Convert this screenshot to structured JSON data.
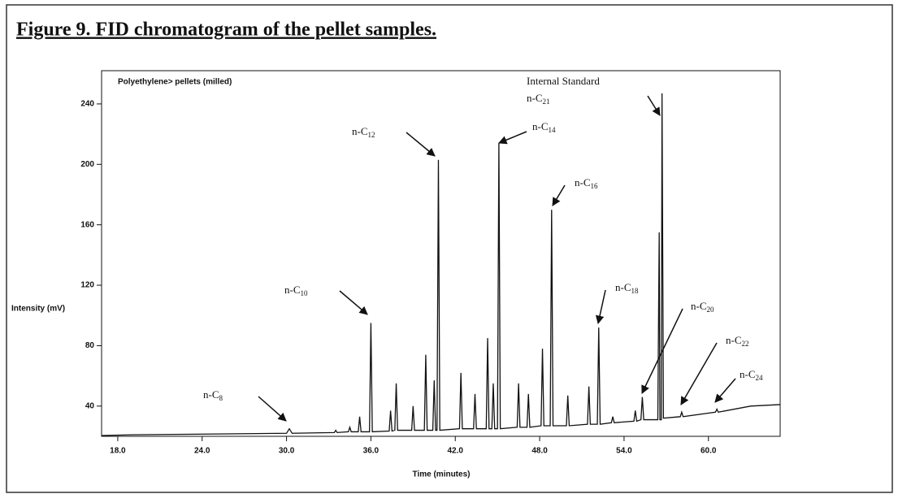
{
  "chart_data": {
    "type": "line",
    "title": "Figure 9. FID chromatogram of the pellet samples.",
    "subtitle": "Polyethylene> pellets (milled)",
    "x_label": "Time (minutes)",
    "y_label": "Intensity (mV)",
    "xlim": [
      16.85,
      65.1
    ],
    "ylim": [
      20,
      262
    ],
    "xticks": [
      {
        "value": 18,
        "label": "18.0"
      },
      {
        "value": 24,
        "label": "24.0"
      },
      {
        "value": 30,
        "label": "30.0"
      },
      {
        "value": 36,
        "label": "36.0"
      },
      {
        "value": 42,
        "label": "42.0"
      },
      {
        "value": 48,
        "label": "48.0"
      },
      {
        "value": 54,
        "label": "54.0"
      },
      {
        "value": 60,
        "label": "60.0"
      }
    ],
    "yticks": [
      40,
      80,
      120,
      160,
      200,
      240
    ],
    "grid": false,
    "color": "#111111",
    "x": [
      16.85,
      19.0,
      30.0,
      30.2,
      30.4,
      33.4,
      33.5,
      33.6,
      34.4,
      34.5,
      34.6,
      35.1,
      35.2,
      35.3,
      35.9,
      36.0,
      36.1,
      37.3,
      37.4,
      37.5,
      37.7,
      37.8,
      37.9,
      38.9,
      39.0,
      39.1,
      39.8,
      39.9,
      40.0,
      40.4,
      40.5,
      40.6,
      40.7,
      40.8,
      40.9,
      42.3,
      42.4,
      42.5,
      43.3,
      43.4,
      43.5,
      44.2,
      44.3,
      44.4,
      44.6,
      44.7,
      44.8,
      45.0,
      45.1,
      45.2,
      46.4,
      46.5,
      46.6,
      47.1,
      47.2,
      47.3,
      48.1,
      48.2,
      48.3,
      48.75,
      48.85,
      48.95,
      49.9,
      50.0,
      50.1,
      51.4,
      51.5,
      51.6,
      52.1,
      52.2,
      52.3,
      53.1,
      53.2,
      53.3,
      54.7,
      54.8,
      54.9,
      55.2,
      55.3,
      55.4,
      56.4,
      56.5,
      56.55,
      56.65,
      56.7,
      56.8,
      58.0,
      58.1,
      58.2,
      60.5,
      60.6,
      60.7,
      63.0,
      65.1
    ],
    "values": [
      20.5,
      21,
      22,
      25,
      22,
      22.5,
      24,
      22.5,
      23,
      26,
      23,
      23,
      33,
      23,
      23,
      95,
      23,
      23.5,
      37,
      23.5,
      24,
      55,
      24,
      24,
      40,
      24,
      24,
      74,
      24,
      24,
      57,
      24,
      24,
      203,
      24,
      25,
      62,
      25,
      25,
      48,
      25,
      25,
      85,
      25,
      25,
      55,
      25,
      25,
      214,
      25,
      26,
      55,
      26,
      26,
      48,
      26,
      27,
      78,
      27,
      27,
      170,
      27,
      27,
      47,
      27,
      28,
      53,
      28,
      28,
      92,
      28,
      29,
      33,
      29,
      30,
      37,
      30,
      31,
      46,
      31,
      31,
      155,
      31,
      31,
      247,
      32,
      33,
      36,
      33,
      36,
      38,
      36,
      40,
      41
    ],
    "internal_standard_label": "Internal Standard",
    "annotations": [
      {
        "text": "n-C",
        "sub": "8"
      },
      {
        "text": "n-C",
        "sub": "10"
      },
      {
        "text": "n-C",
        "sub": "12"
      },
      {
        "text": "n-C",
        "sub": "14"
      },
      {
        "text": "n-C",
        "sub": "16"
      },
      {
        "text": "n-C",
        "sub": "18"
      },
      {
        "text": "n-C",
        "sub": "20"
      },
      {
        "text": "n-C",
        "sub": "21"
      },
      {
        "text": "n-C",
        "sub": "22"
      },
      {
        "text": "n-C",
        "sub": "24"
      }
    ]
  }
}
